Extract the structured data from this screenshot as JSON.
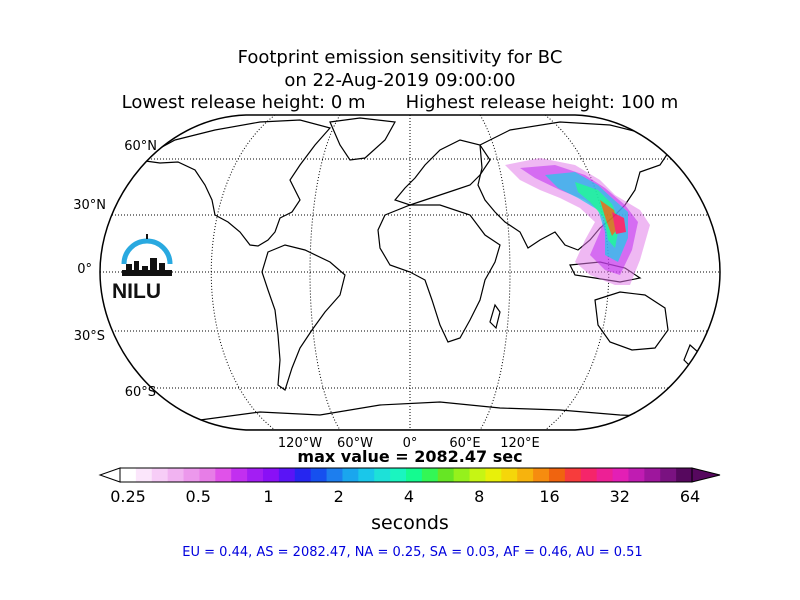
{
  "title": {
    "line1": "Footprint emission sensitivity for BC",
    "line2": "on 22-Aug-2019 09:00:00",
    "line3": "Lowest release height: 0 m       Highest release height: 100 m"
  },
  "map": {
    "projection": "robinson",
    "lat_labels": [
      "60°N",
      "30°N",
      "0°",
      "30°S",
      "60°S"
    ],
    "lon_labels": [
      "120°W",
      "60°W",
      "0°",
      "60°E",
      "120°E"
    ],
    "coastline_color": "#000000",
    "gridline_style": "dotted"
  },
  "logo": {
    "text": "NILU",
    "arc_color": "#29a9e0"
  },
  "max_value_text": "max value = 2082.47 sec",
  "colorbar": {
    "tick_labels": [
      "0.25",
      "0.5",
      "1",
      "2",
      "4",
      "8",
      "16",
      "32",
      "64"
    ],
    "label": "seconds",
    "colors": [
      "#ffffff",
      "#fbe6fb",
      "#f7cdf7",
      "#f1b3f1",
      "#ec98ec",
      "#e77de7",
      "#e052e9",
      "#c22ff0",
      "#a31ef3",
      "#8a10f6",
      "#5a14f6",
      "#2626f0",
      "#1650ef",
      "#1d7eee",
      "#1aa6ee",
      "#1ac7ea",
      "#1de1d8",
      "#1af5c0",
      "#14fb90",
      "#33f755",
      "#66e624",
      "#95f11c",
      "#c6f514",
      "#e8f00a",
      "#f5d60a",
      "#f7b30d",
      "#f68c0f",
      "#f0640f",
      "#f73c3c",
      "#f5256a",
      "#ed2095",
      "#e31fb5",
      "#c01cb2",
      "#9e169d",
      "#7a1281",
      "#56085e"
    ],
    "extend": "both"
  },
  "stats_text": "EU = 0.44,  AS = 2082.47,  NA = 0.25,  SA = 0.03,  AF = 0.46,  AU = 0.51"
}
